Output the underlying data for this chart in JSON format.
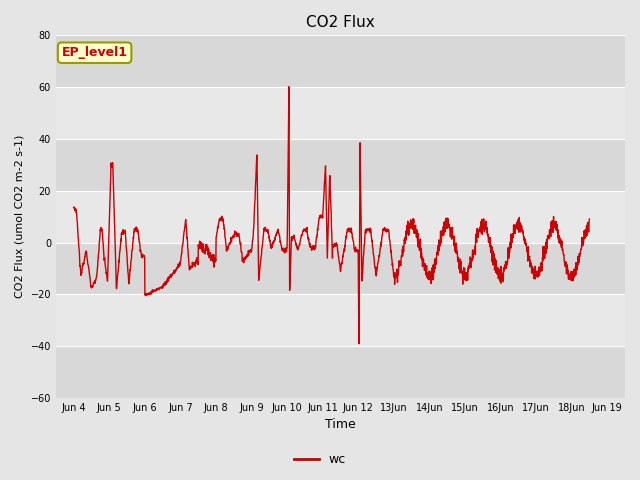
{
  "title": "CO2 Flux",
  "xlabel": "Time",
  "ylabel": "CO2 Flux (umol CO2 m-2 s-1)",
  "ylim": [
    -60,
    80
  ],
  "yticks": [
    -60,
    -40,
    -20,
    0,
    20,
    40,
    60,
    80
  ],
  "xlim_days": [
    3.5,
    19.5
  ],
  "xtick_positions": [
    4,
    5,
    6,
    7,
    8,
    9,
    10,
    11,
    12,
    13,
    14,
    15,
    16,
    17,
    18,
    19
  ],
  "xtick_labels": [
    "Jun 4",
    "Jun 5",
    "Jun 6",
    "Jun 7",
    "Jun 8",
    "Jun 9",
    "Jun 10",
    "Jun 11",
    "Jun 12",
    "13Jun",
    "14Jun",
    "15Jun",
    "16Jun",
    "17Jun",
    "18Jun",
    "Jun 19"
  ],
  "line_color": "#cc0000",
  "line_width": 1.0,
  "legend_label": "wc",
  "annotation_text": "EP_level1",
  "bg_color": "#e5e5e5",
  "plot_bg_color": "#e5e5e5",
  "grid_color": "#ffffff",
  "annotation_bg": "#ffffcc",
  "annotation_border": "#999900",
  "band_colors": [
    "#d8d8d8",
    "#e8e8e8"
  ]
}
